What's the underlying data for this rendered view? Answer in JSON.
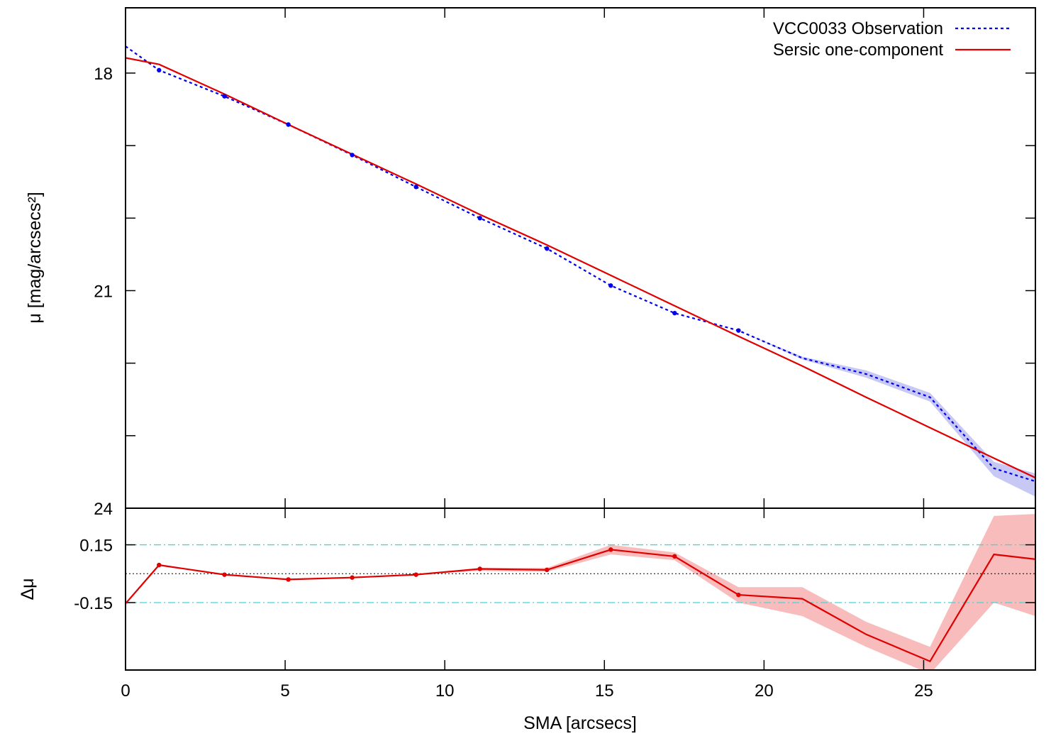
{
  "chart_data": [
    {
      "type": "line",
      "panel": "profile",
      "ylabel": "μ [mag/arcsecs²]",
      "xlim": [
        0,
        28.5
      ],
      "ylim": [
        24,
        17.1
      ],
      "y_inverted": true,
      "y_ticks": [
        18,
        21,
        24
      ],
      "y_minor_ticks": [
        19,
        20,
        22,
        23
      ],
      "grid": false,
      "legend": "top-right",
      "series": [
        {
          "name": "VCC0033 Observation",
          "style": "dotted",
          "color": "#0000ee",
          "markers": true,
          "x": [
            0,
            1.05,
            3.1,
            5.1,
            7.1,
            9.1,
            11.1,
            13.2,
            15.2,
            17.2,
            19.2,
            21.2,
            23.2,
            25.2,
            27.2,
            28.5
          ],
          "values": [
            17.63,
            17.96,
            18.32,
            18.71,
            19.13,
            19.57,
            20.0,
            20.42,
            20.93,
            21.31,
            21.55,
            21.93,
            22.15,
            22.47,
            23.45,
            23.63
          ],
          "marker_count": 10,
          "error_band": {
            "color": "#c8c8f5",
            "lower": [
              17.63,
              17.96,
              18.32,
              18.71,
              19.13,
              19.57,
              20.0,
              20.42,
              20.93,
              21.31,
              21.55,
              21.91,
              22.1,
              22.41,
              23.36,
              23.52
            ],
            "upper": [
              17.63,
              17.96,
              18.32,
              18.71,
              19.13,
              19.57,
              20.0,
              20.42,
              20.93,
              21.31,
              21.55,
              21.95,
              22.2,
              22.53,
              23.56,
              23.84
            ]
          }
        },
        {
          "name": "Sersic one-component",
          "style": "solid",
          "color": "#e00000",
          "x": [
            0,
            1.05,
            3.1,
            5.1,
            7.1,
            9.1,
            11.1,
            13.2,
            15.2,
            17.2,
            19.2,
            21.2,
            23.2,
            25.2,
            27.2,
            28.5
          ],
          "values": [
            17.79,
            17.88,
            18.29,
            18.71,
            19.12,
            19.53,
            19.95,
            20.37,
            20.79,
            21.21,
            21.63,
            22.04,
            22.47,
            22.89,
            23.31,
            23.58
          ]
        }
      ]
    },
    {
      "type": "line",
      "panel": "residuals",
      "xlabel": "SMA [arcsecs]",
      "ylabel": "Δμ",
      "xlim": [
        0,
        28.5
      ],
      "ylim": [
        -0.5,
        0.34
      ],
      "x_ticks": [
        0,
        5,
        10,
        15,
        20,
        25
      ],
      "y_ticks": [
        0.15,
        -0.15
      ],
      "y_tick_labels": [
        "0.15",
        "-0.15"
      ],
      "reference_lines": [
        {
          "y": 0.15,
          "style": "dash-dot",
          "color": "#40d8d8"
        },
        {
          "y": -0.15,
          "style": "dash-dot",
          "color": "#40d8d8"
        },
        {
          "y": 0,
          "style": "dotted",
          "color": "#000000"
        }
      ],
      "series": [
        {
          "color": "#e00000",
          "markers": true,
          "x": [
            0,
            1.05,
            3.1,
            5.1,
            7.1,
            9.1,
            11.1,
            13.2,
            15.2,
            17.2,
            19.2,
            21.2,
            23.2,
            25.2,
            27.2,
            28.5
          ],
          "values": [
            -0.155,
            0.045,
            -0.005,
            -0.03,
            -0.02,
            -0.005,
            0.025,
            0.02,
            0.125,
            0.09,
            -0.11,
            -0.13,
            -0.315,
            -0.455,
            0.1,
            0.075
          ],
          "marker_count": 10,
          "error_band": {
            "color": "#f8bcbc",
            "lower": [
              -0.155,
              0.045,
              -0.005,
              -0.03,
              -0.02,
              -0.005,
              0.015,
              0.01,
              0.1,
              0.07,
              -0.15,
              -0.22,
              -0.38,
              -0.52,
              -0.15,
              -0.22
            ],
            "upper": [
              -0.155,
              0.045,
              -0.005,
              -0.03,
              -0.02,
              -0.005,
              0.03,
              0.03,
              0.15,
              0.11,
              -0.07,
              -0.07,
              -0.25,
              -0.38,
              0.3,
              0.31
            ]
          }
        }
      ]
    }
  ]
}
